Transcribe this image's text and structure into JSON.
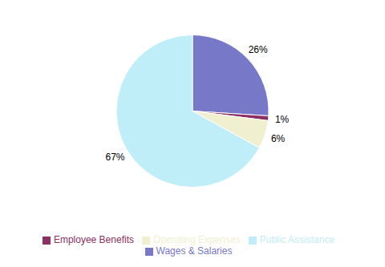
{
  "chart_data": {
    "type": "pie",
    "categories": [
      "Wages & Salaries",
      "Employee Benefits",
      "Operating Expenses",
      "Public Assistance"
    ],
    "values": [
      26,
      1,
      6,
      67
    ],
    "value_labels": [
      "26%",
      "1%",
      "6%",
      "67%"
    ],
    "colors": [
      "#7878c8",
      "#8b3060",
      "#f0f0d0",
      "#c0eef8"
    ],
    "data_labels": true,
    "legend": "bottom"
  }
}
